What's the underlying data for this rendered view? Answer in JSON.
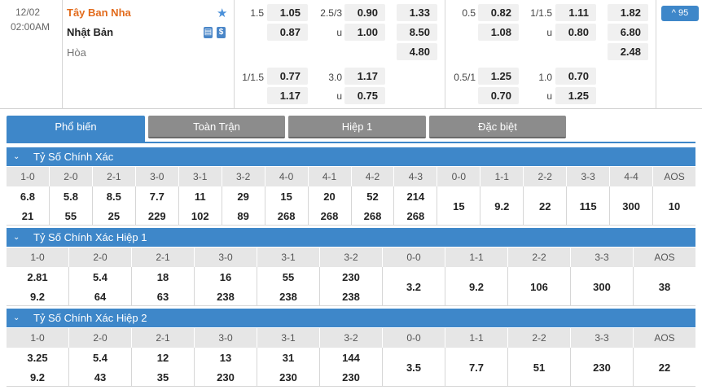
{
  "match": {
    "date": "12/02",
    "time": "02:00AM",
    "home": "Tây Ban Nha",
    "away": "Nhật Bản",
    "draw": "Hòa",
    "badge_count": "^ 95",
    "ft": {
      "hdp1_line": "1.5",
      "hdp1_home": "1.05",
      "hdp1_away": "0.87",
      "ou1_line": "2.5/3",
      "ou1_over": "0.90",
      "ou1_u": "u",
      "ou1_under": "1.00",
      "x12_home": "1.33",
      "x12_away": "8.50",
      "x12_draw": "4.80",
      "hdp2_line": "1/1.5",
      "hdp2_home": "0.77",
      "hdp2_away": "1.17",
      "ou2_line": "3.0",
      "ou2_over": "1.17",
      "ou2_u": "u",
      "ou2_under": "0.75"
    },
    "ht": {
      "hdp1_line": "0.5",
      "hdp1_home": "0.82",
      "hdp1_away": "1.08",
      "ou1_line": "1/1.5",
      "ou1_over": "1.11",
      "ou1_u": "u",
      "ou1_under": "0.80",
      "x12_home": "1.82",
      "x12_away": "6.80",
      "x12_draw": "2.48",
      "hdp2_line": "0.5/1",
      "hdp2_home": "1.25",
      "hdp2_away": "0.70",
      "ou2_line": "1.0",
      "ou2_over": "0.70",
      "ou2_u": "u",
      "ou2_under": "1.25"
    }
  },
  "tabs": [
    "Phổ biến",
    "Toàn Trận",
    "Hiệp 1",
    "Đặc biệt"
  ],
  "sections": [
    {
      "title": "Tỷ Số Chính Xác",
      "cols": [
        {
          "h": "1-0",
          "a": "6.8",
          "b": "21"
        },
        {
          "h": "2-0",
          "a": "5.8",
          "b": "55"
        },
        {
          "h": "2-1",
          "a": "8.5",
          "b": "25"
        },
        {
          "h": "3-0",
          "a": "7.7",
          "b": "229"
        },
        {
          "h": "3-1",
          "a": "11",
          "b": "102"
        },
        {
          "h": "3-2",
          "a": "29",
          "b": "89"
        },
        {
          "h": "4-0",
          "a": "15",
          "b": "268"
        },
        {
          "h": "4-1",
          "a": "20",
          "b": "268"
        },
        {
          "h": "4-2",
          "a": "52",
          "b": "268"
        },
        {
          "h": "4-3",
          "a": "214",
          "b": "268"
        },
        {
          "h": "0-0",
          "m": "15"
        },
        {
          "h": "1-1",
          "m": "9.2"
        },
        {
          "h": "2-2",
          "m": "22"
        },
        {
          "h": "3-3",
          "m": "115"
        },
        {
          "h": "4-4",
          "m": "300"
        },
        {
          "h": "AOS",
          "m": "10"
        }
      ]
    },
    {
      "title": "Tỷ Số Chính Xác Hiệp 1",
      "cols": [
        {
          "h": "1-0",
          "a": "2.81",
          "b": "9.2"
        },
        {
          "h": "2-0",
          "a": "5.4",
          "b": "64"
        },
        {
          "h": "2-1",
          "a": "18",
          "b": "63"
        },
        {
          "h": "3-0",
          "a": "16",
          "b": "238"
        },
        {
          "h": "3-1",
          "a": "55",
          "b": "238"
        },
        {
          "h": "3-2",
          "a": "230",
          "b": "238"
        },
        {
          "h": "0-0",
          "m": "3.2"
        },
        {
          "h": "1-1",
          "m": "9.2"
        },
        {
          "h": "2-2",
          "m": "106"
        },
        {
          "h": "3-3",
          "m": "300"
        },
        {
          "h": "AOS",
          "m": "38"
        }
      ]
    },
    {
      "title": "Tỷ Số Chính Xác Hiệp 2",
      "cols": [
        {
          "h": "1-0",
          "a": "3.25",
          "b": "9.2"
        },
        {
          "h": "2-0",
          "a": "5.4",
          "b": "43"
        },
        {
          "h": "2-1",
          "a": "12",
          "b": "35"
        },
        {
          "h": "3-0",
          "a": "13",
          "b": "230"
        },
        {
          "h": "3-1",
          "a": "31",
          "b": "230"
        },
        {
          "h": "3-2",
          "a": "144",
          "b": "230"
        },
        {
          "h": "0-0",
          "m": "3.5"
        },
        {
          "h": "1-1",
          "m": "7.7"
        },
        {
          "h": "2-2",
          "m": "51"
        },
        {
          "h": "3-3",
          "m": "230"
        },
        {
          "h": "AOS",
          "m": "22"
        }
      ]
    }
  ]
}
